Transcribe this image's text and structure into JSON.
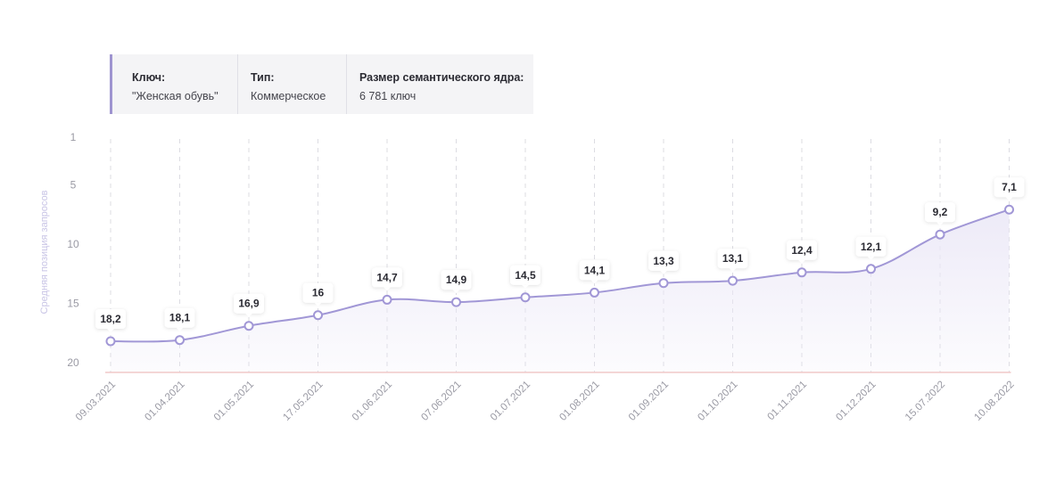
{
  "info": {
    "key_label": "Ключ:",
    "key_value": "\"Женская обувь\"",
    "type_label": "Тип:",
    "type_value": "Коммерческое",
    "size_label": "Размер семантического ядра:",
    "size_value": "6 781 ключ"
  },
  "chart_data": {
    "type": "line",
    "title": "",
    "xlabel": "",
    "ylabel": "Средняя позиция запросов",
    "yticks": [
      "1",
      "5",
      "10",
      "15",
      "20"
    ],
    "ylim": [
      1,
      20
    ],
    "y_inverted": true,
    "categories": [
      "09.03.2021",
      "01.04.2021",
      "01.05.2021",
      "17.05.2021",
      "01.06.2021",
      "07.06.2021",
      "01.07.2021",
      "01.08.2021",
      "01.09.2021",
      "01.10.2021",
      "01.11.2021",
      "01.12.2021",
      "15.07.2022",
      "10.08.2022"
    ],
    "values": [
      18.2,
      18.1,
      16.9,
      16,
      14.7,
      14.9,
      14.5,
      14.1,
      13.3,
      13.1,
      12.4,
      12.1,
      9.2,
      7.1
    ],
    "point_labels": [
      "18,2",
      "18,1",
      "16,9",
      "16",
      "14,7",
      "14,9",
      "14,5",
      "14,1",
      "13,3",
      "13,1",
      "12,4",
      "12,1",
      "9,2",
      "7,1"
    ],
    "colors": {
      "line": "#a197d6",
      "fill": "#ece9f7",
      "baseline": "#f0c8c8",
      "grid": "#dcdce2"
    }
  }
}
